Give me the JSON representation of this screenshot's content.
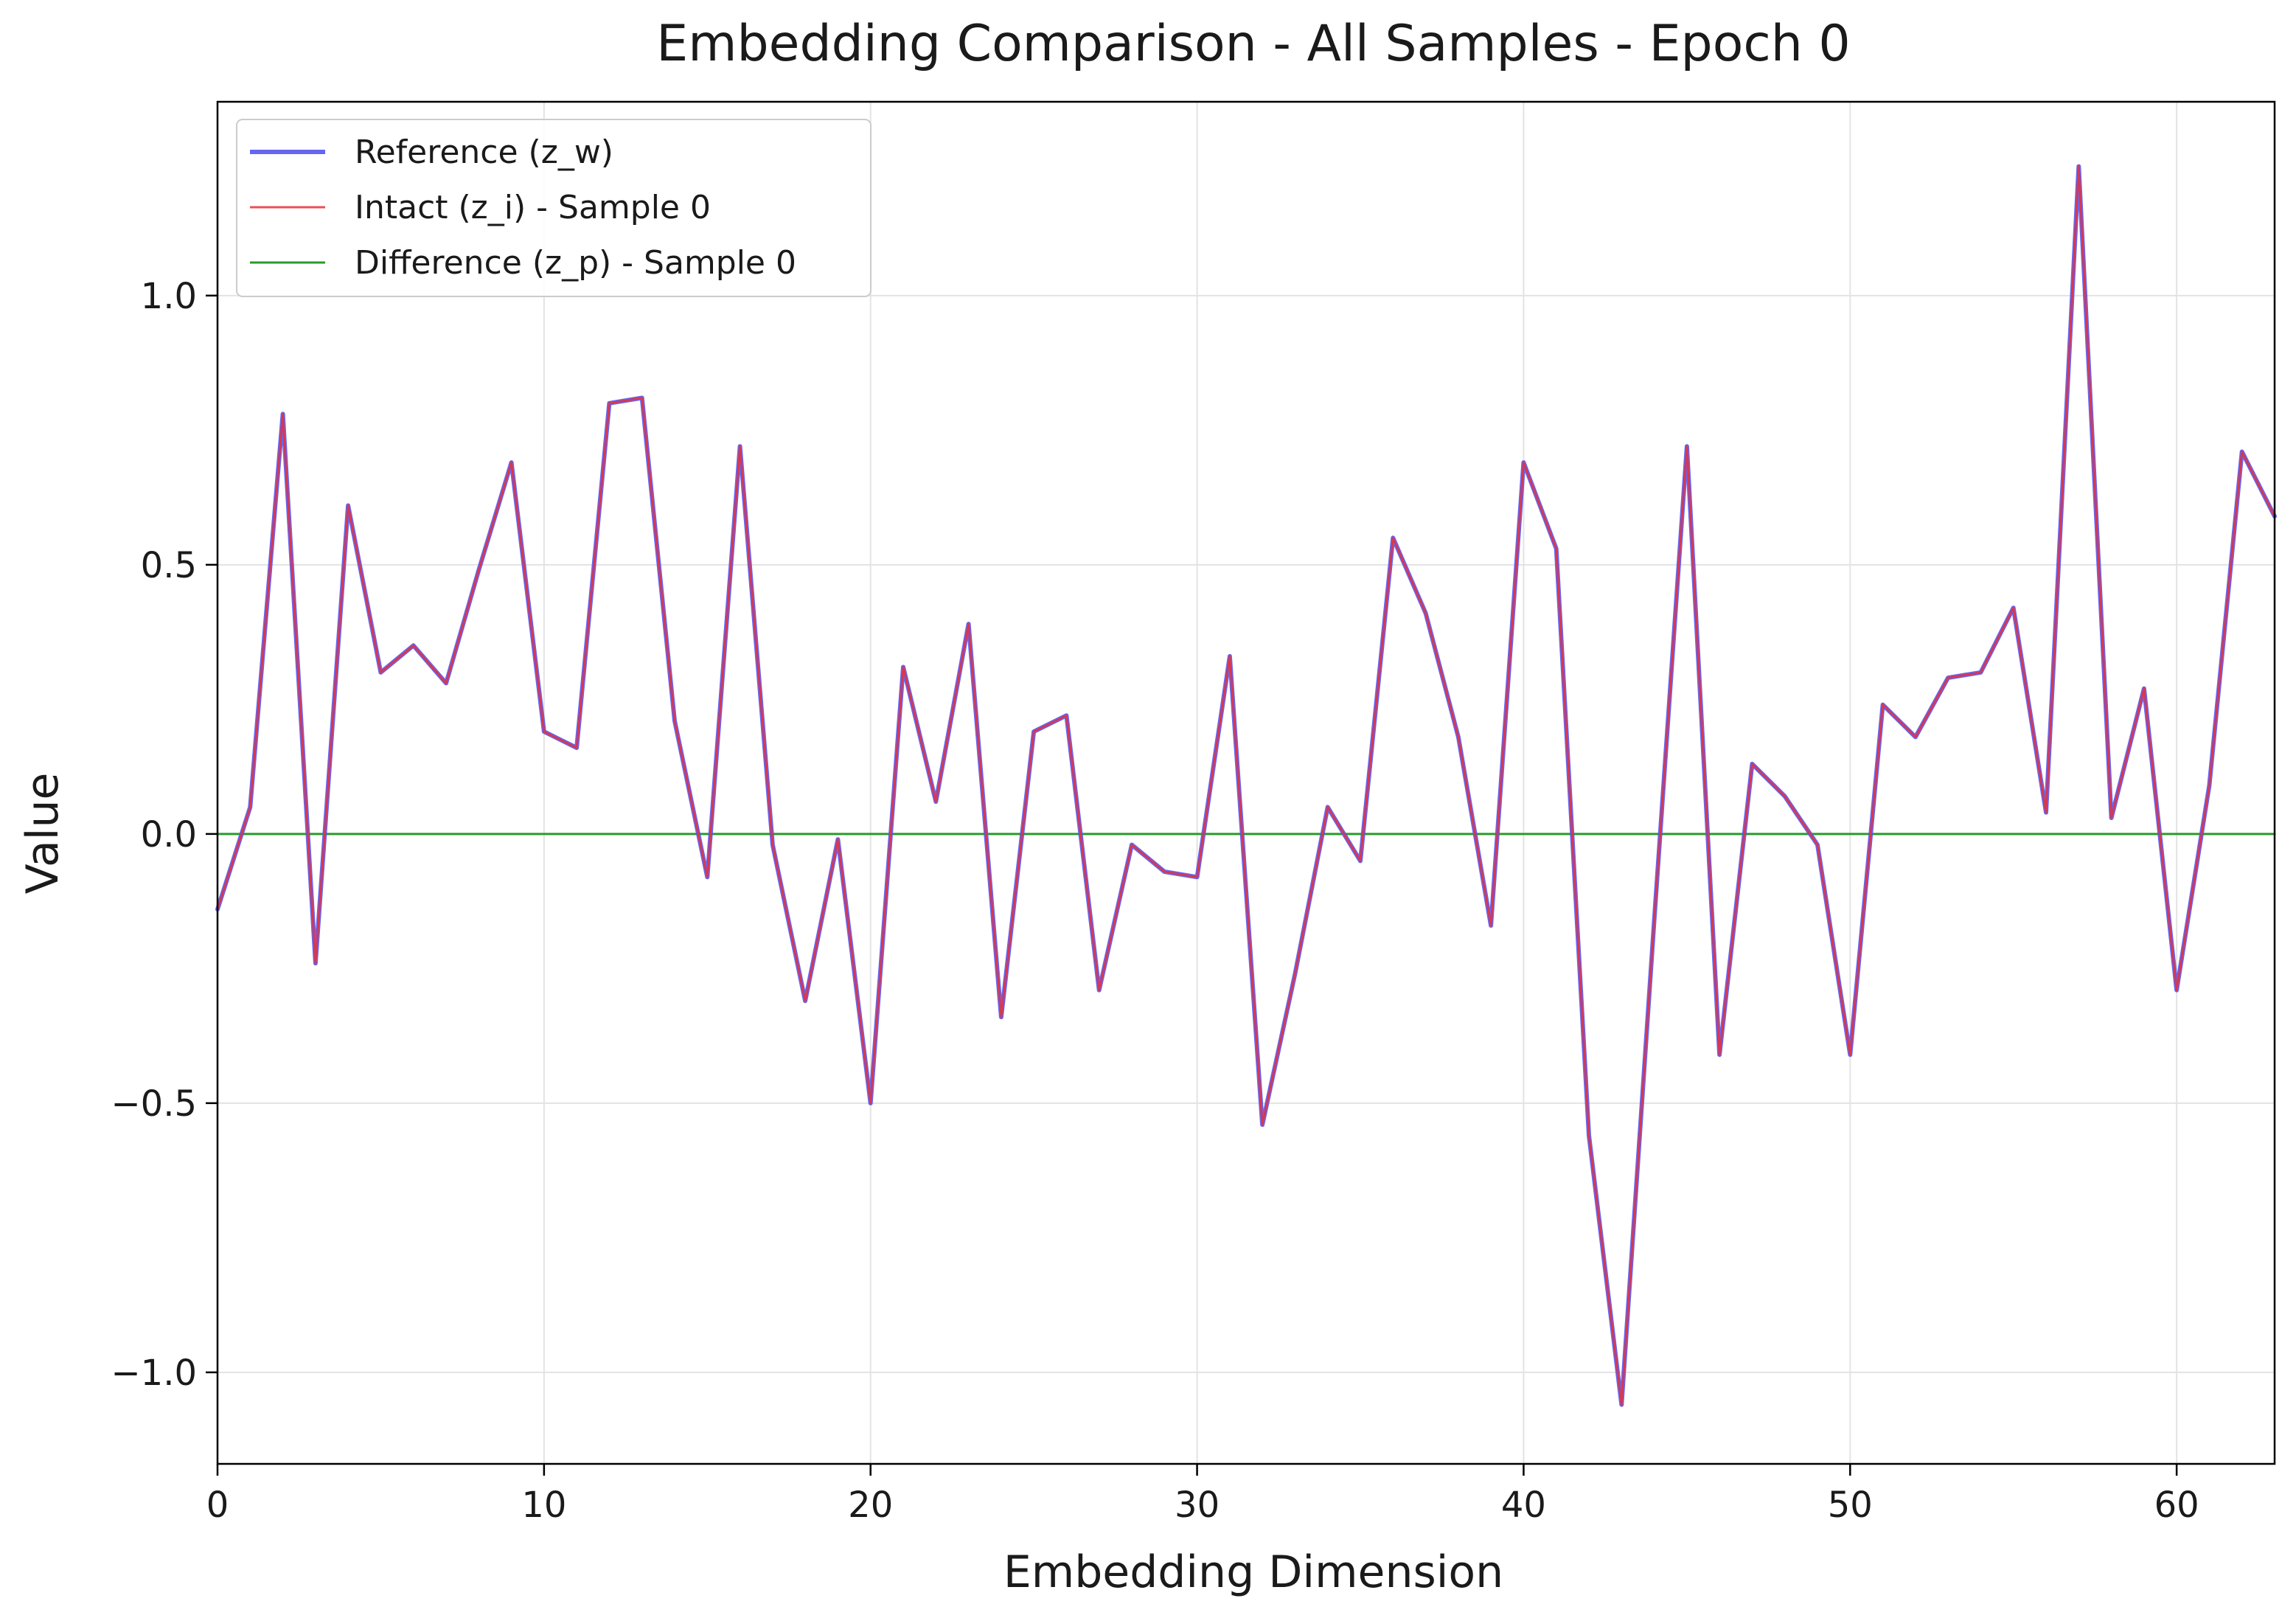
{
  "chart_data": {
    "type": "line",
    "title": "Embedding Comparison - All Samples - Epoch 0",
    "xlabel": "Embedding Dimension",
    "ylabel": "Value",
    "xlim": [
      0,
      63
    ],
    "ylim": [
      -1.17,
      1.36
    ],
    "xticks": [
      0,
      10,
      20,
      30,
      40,
      50,
      60
    ],
    "xtick_labels": [
      "0",
      "10",
      "20",
      "30",
      "40",
      "50",
      "60"
    ],
    "yticks": [
      1.0,
      0.5,
      0.0,
      -0.5,
      -1.0
    ],
    "ytick_labels": [
      "1.0",
      "0.5",
      "0.0",
      "−0.5",
      "−1.0"
    ],
    "grid": true,
    "legend_position": "top-left",
    "x": [
      0,
      1,
      2,
      3,
      4,
      5,
      6,
      7,
      8,
      9,
      10,
      11,
      12,
      13,
      14,
      15,
      16,
      17,
      18,
      19,
      20,
      21,
      22,
      23,
      24,
      25,
      26,
      27,
      28,
      29,
      30,
      31,
      32,
      33,
      34,
      35,
      36,
      37,
      38,
      39,
      40,
      41,
      42,
      43,
      44,
      45,
      46,
      47,
      48,
      49,
      50,
      51,
      52,
      53,
      54,
      55,
      56,
      57,
      58,
      59,
      60,
      61,
      62,
      63
    ],
    "series": [
      {
        "name": "Reference (z_w)",
        "color": "#5555ee",
        "values": [
          -0.14,
          0.05,
          0.78,
          -0.24,
          0.61,
          0.3,
          0.35,
          0.28,
          0.49,
          0.69,
          0.19,
          0.16,
          0.8,
          0.81,
          0.21,
          -0.08,
          0.72,
          -0.02,
          -0.31,
          -0.01,
          -0.5,
          0.31,
          0.06,
          0.39,
          -0.34,
          0.19,
          0.22,
          -0.29,
          -0.02,
          -0.07,
          -0.08,
          0.33,
          -0.54,
          -0.26,
          0.05,
          -0.05,
          0.55,
          0.41,
          0.18,
          -0.17,
          0.69,
          0.53,
          -0.56,
          -1.06,
          -0.16,
          0.72,
          -0.41,
          0.13,
          0.07,
          -0.02,
          -0.41,
          0.24,
          0.18,
          0.29,
          0.3,
          0.42,
          0.04,
          1.24,
          0.03,
          0.27,
          -0.29,
          0.09,
          0.71,
          0.59
        ]
      },
      {
        "name": "Intact (z_i) - Sample 0",
        "color": "#e8303a",
        "values": [
          -0.14,
          0.05,
          0.78,
          -0.24,
          0.61,
          0.3,
          0.35,
          0.28,
          0.49,
          0.69,
          0.19,
          0.16,
          0.8,
          0.81,
          0.21,
          -0.08,
          0.72,
          -0.02,
          -0.31,
          -0.01,
          -0.5,
          0.31,
          0.06,
          0.39,
          -0.34,
          0.19,
          0.22,
          -0.29,
          -0.02,
          -0.07,
          -0.08,
          0.33,
          -0.54,
          -0.26,
          0.05,
          -0.05,
          0.55,
          0.41,
          0.18,
          -0.17,
          0.69,
          0.53,
          -0.56,
          -1.06,
          -0.16,
          0.72,
          -0.41,
          0.13,
          0.07,
          -0.02,
          -0.41,
          0.24,
          0.18,
          0.29,
          0.3,
          0.42,
          0.04,
          1.24,
          0.03,
          0.27,
          -0.29,
          0.09,
          0.71,
          0.59
        ]
      },
      {
        "name": "Difference (z_p) - Sample 0",
        "color": "#2a9a2a",
        "values": [
          0,
          0,
          0,
          0,
          0,
          0,
          0,
          0,
          0,
          0,
          0,
          0,
          0,
          0,
          0,
          0,
          0,
          0,
          0,
          0,
          0,
          0,
          0,
          0,
          0,
          0,
          0,
          0,
          0,
          0,
          0,
          0,
          0,
          0,
          0,
          0,
          0,
          0,
          0,
          0,
          0,
          0,
          0,
          0,
          0,
          0,
          0,
          0,
          0,
          0,
          0,
          0,
          0,
          0,
          0,
          0,
          0,
          0,
          0,
          0,
          0,
          0,
          0,
          0
        ]
      }
    ]
  }
}
